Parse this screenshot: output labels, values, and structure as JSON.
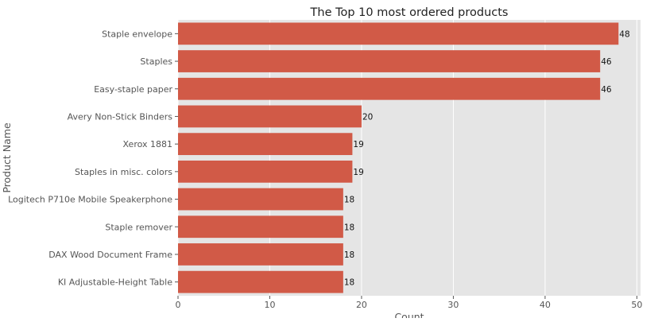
{
  "chart_data": {
    "type": "bar",
    "orientation": "horizontal",
    "title": "The Top 10 most ordered products",
    "xlabel": "Count",
    "ylabel": "Product Name",
    "categories": [
      "Staple envelope",
      "Staples",
      "Easy-staple paper",
      "Avery Non-Stick Binders",
      "Xerox 1881",
      "Staples in misc. colors",
      "Logitech P710e Mobile Speakerphone",
      "Staple remover",
      "DAX Wood Document Frame",
      "KI Adjustable-Height Table"
    ],
    "values": [
      48,
      46,
      46,
      20,
      19,
      19,
      18,
      18,
      18,
      18
    ],
    "data_labels": [
      "48",
      "46",
      "46",
      "20",
      "19",
      "19",
      "18",
      "18",
      "18",
      "18"
    ],
    "xticks": [
      "0",
      "10",
      "20",
      "30",
      "40",
      "50"
    ],
    "xlim": [
      0,
      50.4
    ],
    "grid": true,
    "colors": {
      "bar": "#d15a47",
      "plot_background": "#e5e5e5",
      "grid": "#ffffff"
    }
  }
}
